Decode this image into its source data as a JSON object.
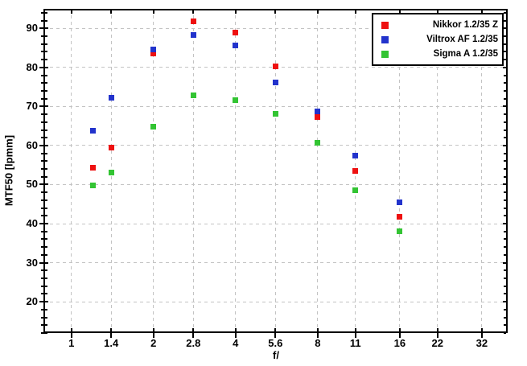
{
  "chart_data": {
    "type": "scatter",
    "xlabel": "f/",
    "ylabel": "MTF50 [lpmm]",
    "x_scale": "log",
    "xlim": [
      0.79,
      39.8
    ],
    "ylim": [
      12,
      95
    ],
    "x_ticks": [
      1,
      1.4,
      2,
      2.8,
      4,
      5.6,
      8,
      11,
      16,
      22,
      32
    ],
    "x_tick_labels": [
      "1",
      "1.4",
      "2",
      "2.8",
      "4",
      "5.6",
      "8",
      "11",
      "16",
      "22",
      "32"
    ],
    "y_major_ticks": [
      20,
      30,
      40,
      50,
      60,
      70,
      80,
      90
    ],
    "y_minor_step": 2,
    "grid": "dashed",
    "grid_color": "#c3c3c3",
    "legend_position": "top-right",
    "marker": "square",
    "x": [
      1.2,
      1.4,
      2,
      2.8,
      4,
      5.6,
      8,
      11,
      16
    ],
    "series": [
      {
        "name": "Nikkor 1.2/35 Z",
        "color": "#ee1111",
        "values": [
          54.3,
          59.5,
          83.5,
          91.9,
          89.0,
          80.2,
          67.4,
          53.6,
          41.8
        ]
      },
      {
        "name": "Viltrox AF 1.2/35",
        "color": "#2233cc",
        "values": [
          63.8,
          72.3,
          84.7,
          88.4,
          85.7,
          76.1,
          68.7,
          57.4,
          45.4
        ]
      },
      {
        "name": "Sigma A 1.2/35",
        "color": "#33c433",
        "values": [
          49.8,
          53.0,
          64.9,
          72.8,
          71.6,
          68.2,
          60.8,
          48.6,
          38.0
        ]
      }
    ]
  }
}
